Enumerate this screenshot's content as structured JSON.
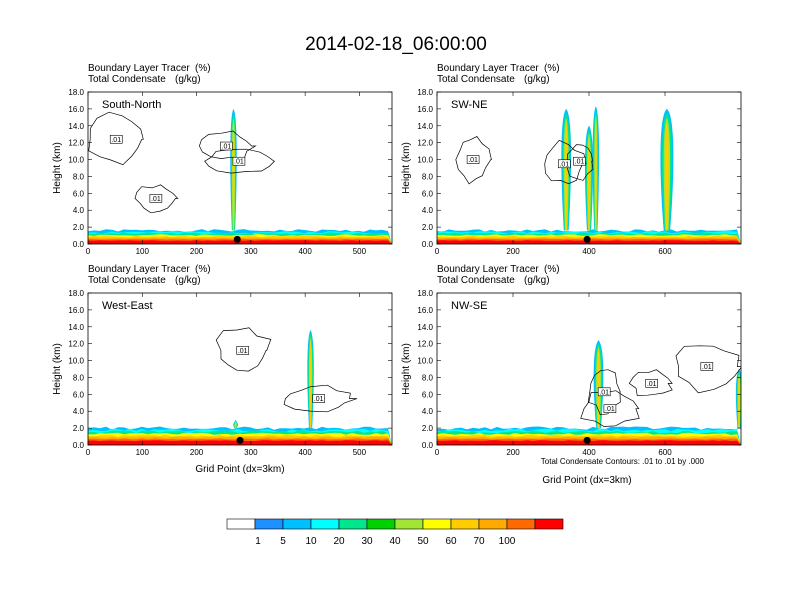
{
  "figure": {
    "title": "2014-02-18_06:00:00",
    "x_axis_label": "Grid Point (dx=3km)",
    "y_axis_label": "Height (km)",
    "field_title": "Boundary Layer Tracer",
    "field_units": "(%)",
    "contour_title": "Total Condensate",
    "contour_units": "(g/kg)",
    "contour_note": "Total Condensate Contours: .01 to .01 by .000",
    "contour_label": ".01"
  },
  "chart_data": [
    {
      "type": "heatmap",
      "id": "south-north",
      "cross_section": "South-North",
      "xlim": [
        0,
        560
      ],
      "ylim": [
        0,
        18
      ],
      "x_ticks": [
        0,
        100,
        200,
        300,
        400,
        500
      ],
      "y_ticks": [
        "0.0",
        "2.0",
        "4.0",
        "6.0",
        "8.0",
        "10.0",
        "12.0",
        "14.0",
        "16.0",
        "18.0"
      ],
      "boundary_layer_top_km": 1.6,
      "updrafts": [
        {
          "x": 268,
          "top_km": 16.0,
          "width": 8
        }
      ],
      "gust_marker_x": 275,
      "contour_label_positions": [
        [
          52,
          12.4
        ],
        [
          255,
          11.6
        ],
        [
          278,
          9.8
        ],
        [
          125,
          5.4
        ]
      ]
    },
    {
      "type": "heatmap",
      "id": "sw-ne",
      "cross_section": "SW-NE",
      "xlim": [
        0,
        800
      ],
      "ylim": [
        0,
        18
      ],
      "x_ticks": [
        0,
        200,
        400,
        600
      ],
      "y_ticks": [
        "0.0",
        "2.0",
        "4.0",
        "6.0",
        "8.0",
        "10.0",
        "12.0",
        "14.0",
        "16.0",
        "18.0"
      ],
      "boundary_layer_top_km": 1.6,
      "updrafts": [
        {
          "x": 340,
          "top_km": 16.0,
          "width": 12
        },
        {
          "x": 400,
          "top_km": 14.0,
          "width": 10
        },
        {
          "x": 418,
          "top_km": 16.3,
          "width": 8
        },
        {
          "x": 605,
          "top_km": 16.0,
          "width": 16
        }
      ],
      "gust_marker_x": 395,
      "contour_label_positions": [
        [
          95,
          10.0
        ],
        [
          335,
          9.5
        ],
        [
          375,
          9.8
        ]
      ]
    },
    {
      "type": "heatmap",
      "id": "west-east",
      "cross_section": "West-East",
      "xlim": [
        0,
        560
      ],
      "ylim": [
        0,
        18
      ],
      "x_ticks": [
        0,
        100,
        200,
        300,
        400,
        500
      ],
      "y_ticks": [
        "0.0",
        "2.0",
        "4.0",
        "6.0",
        "8.0",
        "10.0",
        "12.0",
        "14.0",
        "16.0",
        "18.0"
      ],
      "boundary_layer_top_km": 2.0,
      "updrafts": [
        {
          "x": 410,
          "top_km": 13.6,
          "width": 8
        },
        {
          "x": 272,
          "top_km": 3.0,
          "width": 6
        }
      ],
      "gust_marker_x": 280,
      "contour_label_positions": [
        [
          285,
          11.2
        ],
        [
          425,
          5.5
        ]
      ]
    },
    {
      "type": "heatmap",
      "id": "nw-se",
      "cross_section": "NW-SE",
      "xlim": [
        0,
        800
      ],
      "ylim": [
        0,
        18
      ],
      "x_ticks": [
        0,
        200,
        400,
        600
      ],
      "y_ticks": [
        "0.0",
        "2.0",
        "4.0",
        "6.0",
        "8.0",
        "10.0",
        "12.0",
        "14.0",
        "16.0",
        "18.0"
      ],
      "boundary_layer_top_km": 2.0,
      "updrafts": [
        {
          "x": 425,
          "top_km": 12.4,
          "width": 12
        },
        {
          "x": 795,
          "top_km": 9.0,
          "width": 8
        }
      ],
      "gust_marker_x": 395,
      "contour_label_positions": [
        [
          440,
          6.3
        ],
        [
          455,
          4.3
        ],
        [
          565,
          7.3
        ],
        [
          710,
          9.3
        ]
      ]
    }
  ],
  "legend": {
    "labels": [
      "1",
      "5",
      "10",
      "20",
      "30",
      "40",
      "50",
      "60",
      "70",
      "100"
    ],
    "colors": [
      "#ffffff",
      "#1e90ff",
      "#00bfff",
      "#00ffff",
      "#00e68c",
      "#00d200",
      "#a0e632",
      "#ffff00",
      "#ffcc00",
      "#ffaa00",
      "#ff6a00",
      "#ff0000"
    ]
  }
}
